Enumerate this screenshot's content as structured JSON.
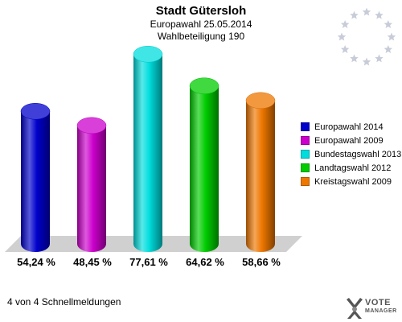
{
  "header": {
    "title": "Stadt Gütersloh",
    "subtitle": "Europawahl 25.05.2014",
    "subtitle2": "Wahlbeteiligung 190"
  },
  "chart_data": {
    "type": "bar",
    "title": "Stadt Gütersloh",
    "categories": [
      "Europawahl 2014",
      "Europawahl 2009",
      "Bundestagswahl 2013",
      "Landtagswahl 2012",
      "Kreistagswahl 2009"
    ],
    "values": [
      54.24,
      48.45,
      77.61,
      64.62,
      58.66
    ],
    "value_labels": [
      "54,24 %",
      "48,45 %",
      "77,61 %",
      "64,62 %",
      "58,66 %"
    ],
    "colors": [
      "#0000cc",
      "#cc00cc",
      "#00dddd",
      "#00cc00",
      "#ee7700"
    ],
    "ylim": [
      0,
      100
    ],
    "grid": false,
    "legend": "right"
  },
  "legend": {
    "items": [
      {
        "label": "Europawahl 2014",
        "color": "#0000cc"
      },
      {
        "label": "Europawahl 2009",
        "color": "#cc00cc"
      },
      {
        "label": "Bundestagswahl 2013",
        "color": "#00dddd"
      },
      {
        "label": "Landtagswahl 2012",
        "color": "#00cc00"
      },
      {
        "label": "Kreistagswahl 2009",
        "color": "#ee7700"
      }
    ]
  },
  "footer": {
    "text": "4 von 4 Schnellmeldungen"
  },
  "logo": {
    "line1": "VOTE",
    "line2": "MANAGER",
    "icon": "vote-manager-logo"
  },
  "eu_flag": {
    "icon": "eu-stars-icon"
  }
}
